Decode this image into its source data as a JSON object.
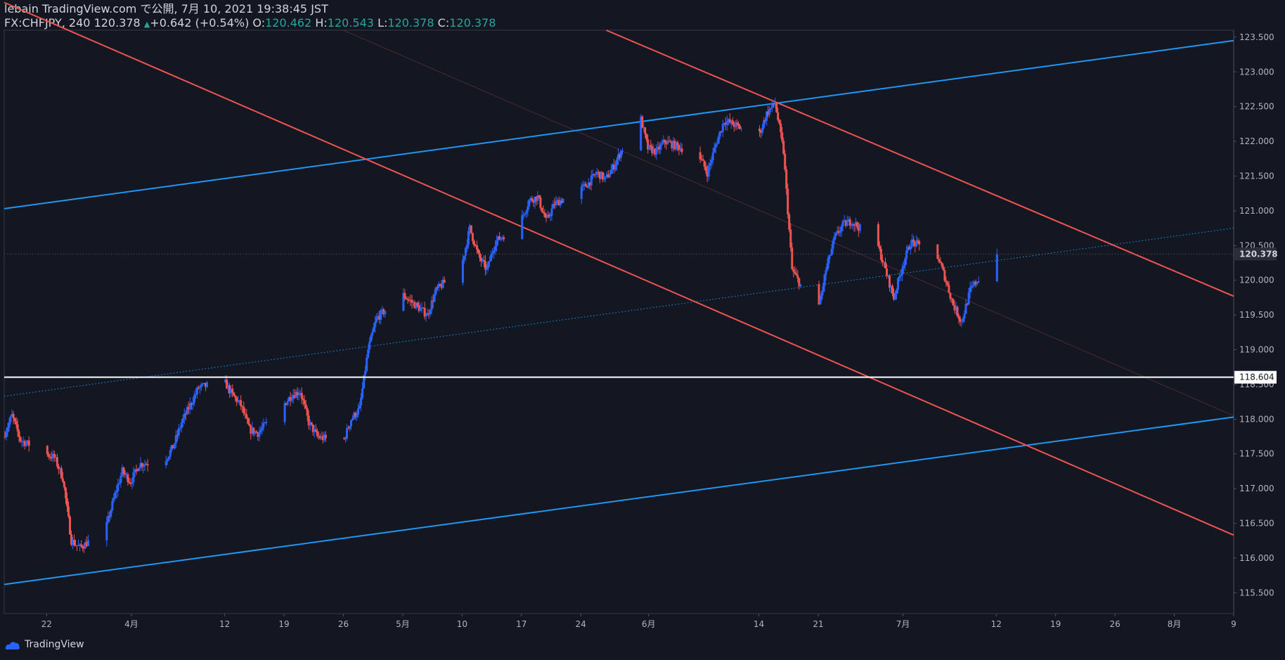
{
  "header": {
    "publisher": "lebain TradingView.com で公開, 7月 10, 2021 19:38:45 JST",
    "symbol": "FX:CHFJPY, 240",
    "last": "120.378",
    "change_arrow": "▲",
    "change": "+0.642 (+0.54%)",
    "o_label": "O:",
    "o_value": "120.462",
    "h_label": "H:",
    "h_value": "120.543",
    "l_label": "L:",
    "l_value": "120.378",
    "c_label": "C:",
    "c_value": "120.378"
  },
  "footer": {
    "brand": "TradingView"
  },
  "colors": {
    "background": "#131722",
    "up": "#2962ff",
    "down": "#ef5350",
    "blue_line": "#2196f3",
    "red_line": "#f05350",
    "horizontal_line": "#ffffff",
    "axis_text": "#b2b5be"
  },
  "chart_data": {
    "type": "candlestick",
    "ylim": [
      115.2,
      123.6
    ],
    "x_range": [
      "2021-03-17",
      "2021-08-09"
    ],
    "y_ticks": [
      "115.500",
      "116.000",
      "116.500",
      "117.000",
      "117.500",
      "118.000",
      "118.500",
      "119.000",
      "119.500",
      "120.000",
      "120.500",
      "121.000",
      "121.500",
      "122.000",
      "122.500",
      "123.000",
      "123.500"
    ],
    "x_ticks": [
      {
        "label": "22",
        "date": "2021-03-22"
      },
      {
        "label": "4月",
        "date": "2021-04-01"
      },
      {
        "label": "12",
        "date": "2021-04-12"
      },
      {
        "label": "19",
        "date": "2021-04-19"
      },
      {
        "label": "26",
        "date": "2021-04-26"
      },
      {
        "label": "5月",
        "date": "2021-05-03"
      },
      {
        "label": "10",
        "date": "2021-05-10"
      },
      {
        "label": "17",
        "date": "2021-05-17"
      },
      {
        "label": "24",
        "date": "2021-05-24"
      },
      {
        "label": "6月",
        "date": "2021-06-01"
      },
      {
        "label": "14",
        "date": "2021-06-14"
      },
      {
        "label": "21",
        "date": "2021-06-21"
      },
      {
        "label": "7月",
        "date": "2021-07-01"
      },
      {
        "label": "12",
        "date": "2021-07-12"
      },
      {
        "label": "19",
        "date": "2021-07-19"
      },
      {
        "label": "26",
        "date": "2021-07-26"
      },
      {
        "label": "8月",
        "date": "2021-08-02"
      },
      {
        "label": "9",
        "date": "2021-08-09"
      }
    ],
    "price_labels": [
      {
        "text": "120.378",
        "value": 120.378,
        "style": "current"
      },
      {
        "text": "118.604",
        "value": 118.604,
        "style": "horizontal-line"
      }
    ],
    "closes": [
      {
        "date": "2021-03-17",
        "close": 117.75
      },
      {
        "date": "2021-03-18",
        "close": 118.05
      },
      {
        "date": "2021-03-19",
        "close": 117.7
      },
      {
        "date": "2021-03-22",
        "close": 117.5
      },
      {
        "date": "2021-03-23",
        "close": 117.45
      },
      {
        "date": "2021-03-24",
        "close": 117.15
      },
      {
        "date": "2021-03-25",
        "close": 116.25
      },
      {
        "date": "2021-03-26",
        "close": 116.15
      },
      {
        "date": "2021-03-29",
        "close": 116.4
      },
      {
        "date": "2021-03-30",
        "close": 116.85
      },
      {
        "date": "2021-03-31",
        "close": 117.25
      },
      {
        "date": "2021-04-01",
        "close": 117.1
      },
      {
        "date": "2021-04-02",
        "close": 117.35
      },
      {
        "date": "2021-04-05",
        "close": 117.4
      },
      {
        "date": "2021-04-06",
        "close": 117.6
      },
      {
        "date": "2021-04-07",
        "close": 117.95
      },
      {
        "date": "2021-04-08",
        "close": 118.2
      },
      {
        "date": "2021-04-09",
        "close": 118.45
      },
      {
        "date": "2021-04-12",
        "close": 118.55
      },
      {
        "date": "2021-04-13",
        "close": 118.35
      },
      {
        "date": "2021-04-14",
        "close": 118.2
      },
      {
        "date": "2021-04-15",
        "close": 117.85
      },
      {
        "date": "2021-04-16",
        "close": 117.8
      },
      {
        "date": "2021-04-19",
        "close": 118.2
      },
      {
        "date": "2021-04-20",
        "close": 118.35
      },
      {
        "date": "2021-04-21",
        "close": 118.4
      },
      {
        "date": "2021-04-22",
        "close": 117.95
      },
      {
        "date": "2021-04-23",
        "close": 117.75
      },
      {
        "date": "2021-04-26",
        "close": 117.65
      },
      {
        "date": "2021-04-27",
        "close": 118.0
      },
      {
        "date": "2021-04-28",
        "close": 118.15
      },
      {
        "date": "2021-04-29",
        "close": 119.0
      },
      {
        "date": "2021-04-30",
        "close": 119.45
      },
      {
        "date": "2021-05-03",
        "close": 119.8
      },
      {
        "date": "2021-05-04",
        "close": 119.7
      },
      {
        "date": "2021-05-05",
        "close": 119.6
      },
      {
        "date": "2021-05-06",
        "close": 119.5
      },
      {
        "date": "2021-05-07",
        "close": 119.85
      },
      {
        "date": "2021-05-10",
        "close": 120.2
      },
      {
        "date": "2021-05-11",
        "close": 120.75
      },
      {
        "date": "2021-05-12",
        "close": 120.35
      },
      {
        "date": "2021-05-13",
        "close": 120.15
      },
      {
        "date": "2021-05-14",
        "close": 120.55
      },
      {
        "date": "2021-05-17",
        "close": 120.85
      },
      {
        "date": "2021-05-18",
        "close": 121.15
      },
      {
        "date": "2021-05-19",
        "close": 121.2
      },
      {
        "date": "2021-05-20",
        "close": 120.85
      },
      {
        "date": "2021-05-21",
        "close": 121.1
      },
      {
        "date": "2021-05-24",
        "close": 121.3
      },
      {
        "date": "2021-05-25",
        "close": 121.4
      },
      {
        "date": "2021-05-26",
        "close": 121.55
      },
      {
        "date": "2021-05-27",
        "close": 121.45
      },
      {
        "date": "2021-05-28",
        "close": 121.65
      },
      {
        "date": "2021-05-31",
        "close": 122.4
      },
      {
        "date": "2021-06-01",
        "close": 121.9
      },
      {
        "date": "2021-06-02",
        "close": 121.85
      },
      {
        "date": "2021-06-03",
        "close": 122.0
      },
      {
        "date": "2021-06-04",
        "close": 121.95
      },
      {
        "date": "2021-06-07",
        "close": 121.8
      },
      {
        "date": "2021-06-08",
        "close": 121.55
      },
      {
        "date": "2021-06-09",
        "close": 121.95
      },
      {
        "date": "2021-06-10",
        "close": 122.3
      },
      {
        "date": "2021-06-11",
        "close": 122.25
      },
      {
        "date": "2021-06-14",
        "close": 122.05
      },
      {
        "date": "2021-06-15",
        "close": 122.4
      },
      {
        "date": "2021-06-16",
        "close": 122.55
      },
      {
        "date": "2021-06-17",
        "close": 121.85
      },
      {
        "date": "2021-06-18",
        "close": 120.15
      },
      {
        "date": "2021-06-21",
        "close": 119.5
      },
      {
        "date": "2021-06-22",
        "close": 120.15
      },
      {
        "date": "2021-06-23",
        "close": 120.6
      },
      {
        "date": "2021-06-24",
        "close": 120.8
      },
      {
        "date": "2021-06-25",
        "close": 120.85
      },
      {
        "date": "2021-06-28",
        "close": 120.55
      },
      {
        "date": "2021-06-29",
        "close": 120.15
      },
      {
        "date": "2021-06-30",
        "close": 119.75
      },
      {
        "date": "2021-07-01",
        "close": 120.2
      },
      {
        "date": "2021-07-02",
        "close": 120.55
      },
      {
        "date": "2021-07-05",
        "close": 120.4
      },
      {
        "date": "2021-07-06",
        "close": 120.05
      },
      {
        "date": "2021-07-07",
        "close": 119.65
      },
      {
        "date": "2021-07-08",
        "close": 119.4
      },
      {
        "date": "2021-07-09",
        "close": 119.85
      },
      {
        "date": "2021-07-12",
        "close": 120.378
      }
    ],
    "trendlines": [
      {
        "name": "upper-blue",
        "color": "blue",
        "p1": {
          "date": "2021-03-17",
          "price": 121.03
        },
        "p2": {
          "date": "2021-08-09",
          "price": 123.45
        }
      },
      {
        "name": "lower-blue",
        "color": "blue",
        "p1": {
          "date": "2021-03-17",
          "price": 115.62
        },
        "p2": {
          "date": "2021-08-09",
          "price": 118.03
        }
      },
      {
        "name": "mid-blue-dotted",
        "color": "blue",
        "dotted": true,
        "p1": {
          "date": "2021-03-17",
          "price": 118.33
        },
        "p2": {
          "date": "2021-08-09",
          "price": 120.75
        }
      },
      {
        "name": "red-lower",
        "color": "red",
        "p1": {
          "date": "2021-03-17",
          "price": 124.0
        },
        "p2": {
          "date": "2021-08-09",
          "price": 116.33
        }
      },
      {
        "name": "red-upper",
        "color": "red",
        "p1": {
          "date": "2021-05-27",
          "price": 123.6
        },
        "p2": {
          "date": "2021-08-09",
          "price": 119.77
        }
      },
      {
        "name": "red-mid-faint",
        "color": "red",
        "faint": true,
        "p1": {
          "date": "2021-04-26",
          "price": 123.6
        },
        "p2": {
          "date": "2021-08-09",
          "price": 118.05
        }
      }
    ],
    "horizontal_line": 118.604
  }
}
